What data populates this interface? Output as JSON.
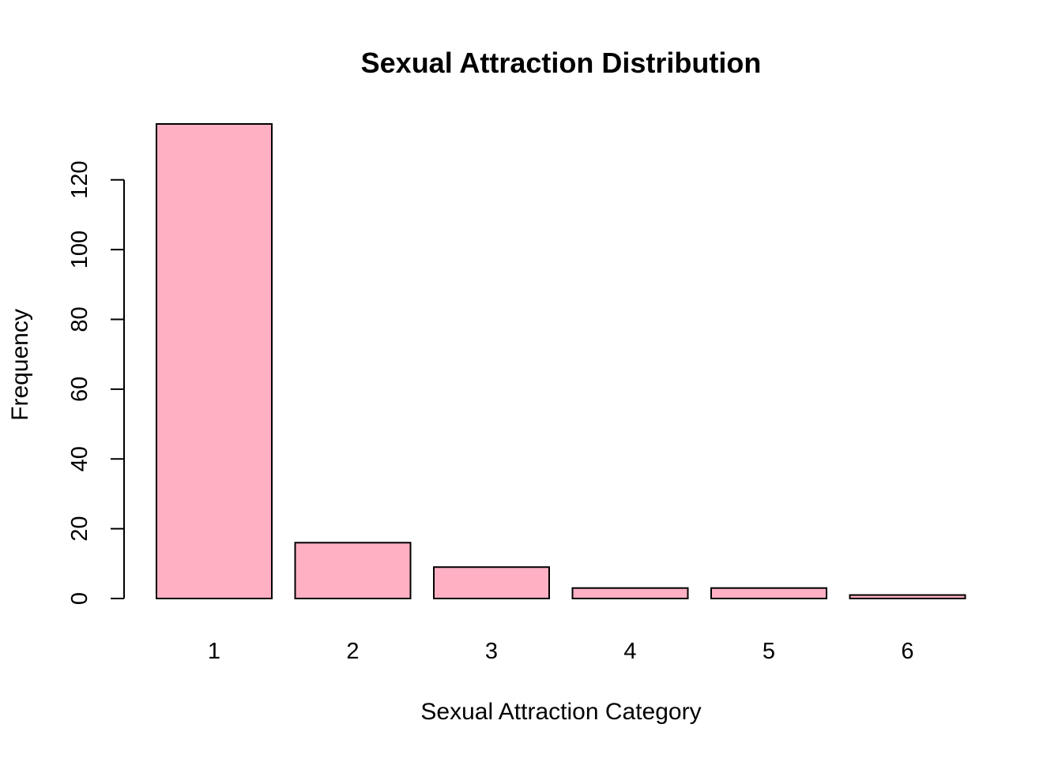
{
  "chart_data": {
    "type": "bar",
    "title": "Sexual Attraction Distribution",
    "xlabel": "Sexual Attraction Category",
    "ylabel": "Frequency",
    "categories": [
      "1",
      "2",
      "3",
      "4",
      "5",
      "6"
    ],
    "values": [
      136,
      16,
      9,
      3,
      3,
      1
    ],
    "ylim": [
      0,
      136
    ],
    "yticks": [
      0,
      20,
      40,
      60,
      80,
      100,
      120
    ],
    "grid": false,
    "bar_color": "#FFB0C2",
    "bar_border_color": "#000000"
  }
}
